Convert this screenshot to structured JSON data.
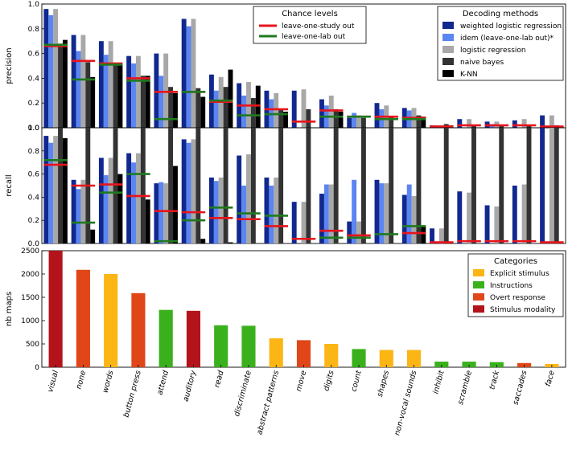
{
  "categories": [
    "visual",
    "none",
    "words",
    "button press",
    "attend",
    "auditory",
    "read",
    "discriminate",
    "abstract patterns",
    "move",
    "digits",
    "count",
    "shapes",
    "non-vocal sounds",
    "inhibit",
    "scramble",
    "track",
    "saccades",
    "face"
  ],
  "panel1": {
    "ylabel": "precision",
    "yticks": [
      "0.0",
      "0.2",
      "0.4",
      "0.6",
      "0.8",
      "1.0"
    ],
    "ylim": [
      0,
      1
    ]
  },
  "panel2": {
    "ylabel": "recall",
    "yticks": [
      "0.0",
      "0.2",
      "0.4",
      "0.6",
      "0.8",
      "1.0"
    ],
    "ylim": [
      0,
      1
    ]
  },
  "panel3": {
    "ylabel": "nb maps",
    "yticks": [
      "0",
      "500",
      "1000",
      "1500",
      "2000",
      "2500"
    ],
    "ylim": [
      0,
      2500
    ]
  },
  "chance_legend": {
    "title": "Chance levels",
    "items": [
      {
        "label": "leave-one-study out",
        "color": "#e8141b"
      },
      {
        "label": "leave-one-lab out",
        "color": "#1f7a1f"
      }
    ]
  },
  "methods_legend": {
    "title": "Decoding methods",
    "items": [
      {
        "label": "weighted logistic regression",
        "color": "#11288f"
      },
      {
        "label": "idem (leave-one-lab out)*",
        "color": "#5b85f0"
      },
      {
        "label": "logistic regression",
        "color": "#a8a8a8"
      },
      {
        "label": "naive bayes",
        "color": "#333333"
      },
      {
        "label": "K-NN",
        "color": "#000000"
      }
    ]
  },
  "categories_legend": {
    "title": "Categories",
    "items": [
      {
        "label": "Explicit stimulus",
        "color": "#fbb514"
      },
      {
        "label": "Instructions",
        "color": "#3ab11c"
      },
      {
        "label": "Overt response",
        "color": "#e04618"
      },
      {
        "label": "Stimulus modality",
        "color": "#b3141b"
      }
    ]
  },
  "chart_data": [
    {
      "type": "bar",
      "title": "",
      "ylabel": "precision",
      "ylim": [
        0,
        1
      ],
      "categories": [
        "visual",
        "none",
        "words",
        "button press",
        "attend",
        "auditory",
        "read",
        "discriminate",
        "abstract patterns",
        "move",
        "digits",
        "count",
        "shapes",
        "non-vocal sounds",
        "inhibit",
        "scramble",
        "track",
        "saccades",
        "face"
      ],
      "series": [
        {
          "name": "weighted logistic regression",
          "values": [
            0.96,
            0.75,
            0.7,
            0.58,
            0.6,
            0.88,
            0.43,
            0.36,
            0.3,
            0.3,
            0.23,
            0.08,
            0.2,
            0.16,
            0.02,
            0.07,
            0.05,
            0.06,
            0.1
          ]
        },
        {
          "name": "idem (leave-one-lab out)*",
          "values": [
            0.91,
            0.62,
            0.59,
            0.52,
            0.42,
            0.82,
            0.3,
            0.26,
            0.23,
            0.0,
            0.18,
            0.12,
            0.15,
            0.14,
            0.02,
            0.0,
            0.03,
            0.0,
            0.0
          ]
        },
        {
          "name": "logistic regression",
          "values": [
            0.96,
            0.75,
            0.7,
            0.58,
            0.6,
            0.88,
            0.41,
            0.37,
            0.28,
            0.31,
            0.26,
            0.1,
            0.18,
            0.16,
            0.02,
            0.07,
            0.05,
            0.07,
            0.1
          ]
        },
        {
          "name": "naive bayes",
          "values": [
            0.68,
            0.53,
            0.52,
            0.42,
            0.33,
            0.32,
            0.33,
            0.24,
            0.15,
            0.15,
            0.15,
            0.08,
            0.09,
            0.1,
            0.03,
            0.02,
            0.02,
            0.02,
            0.02
          ]
        },
        {
          "name": "K-NN",
          "values": [
            0.71,
            0.41,
            0.51,
            0.42,
            0.28,
            0.25,
            0.47,
            0.34,
            0.13,
            0.0,
            0.13,
            0.0,
            0.0,
            0.09,
            0.02,
            0.0,
            0.0,
            0.0,
            0.0
          ]
        }
      ],
      "chance": [
        {
          "name": "leave-one-study out",
          "values": [
            0.66,
            0.54,
            0.52,
            0.4,
            0.29,
            0.29,
            0.21,
            0.18,
            0.15,
            0.05,
            0.14,
            0.09,
            0.09,
            0.08,
            0.01,
            0.02,
            0.02,
            0.02,
            0.01
          ]
        },
        {
          "name": "leave-one-lab out",
          "values": [
            0.67,
            0.39,
            0.51,
            0.38,
            0.07,
            0.29,
            0.22,
            0.1,
            0.11,
            0.0,
            0.09,
            0.09,
            0.07,
            0.07,
            0.0,
            0.0,
            0.0,
            0.0,
            0.0
          ]
        }
      ]
    },
    {
      "type": "bar",
      "title": "",
      "ylabel": "recall",
      "ylim": [
        0,
        1
      ],
      "categories": [
        "visual",
        "none",
        "words",
        "button press",
        "attend",
        "auditory",
        "read",
        "discriminate",
        "abstract patterns",
        "move",
        "digits",
        "count",
        "shapes",
        "non-vocal sounds",
        "inhibit",
        "scramble",
        "track",
        "saccades",
        "face"
      ],
      "series": [
        {
          "name": "weighted logistic regression",
          "values": [
            0.93,
            0.55,
            0.74,
            0.78,
            0.52,
            0.9,
            0.57,
            0.76,
            0.57,
            0.36,
            0.43,
            0.19,
            0.55,
            0.42,
            0.13,
            0.45,
            0.33,
            0.5,
            1.0
          ]
        },
        {
          "name": "idem (leave-one-lab out)*",
          "values": [
            0.87,
            0.47,
            0.59,
            0.7,
            0.53,
            0.87,
            0.54,
            0.5,
            0.5,
            0.0,
            0.51,
            0.55,
            0.52,
            0.51,
            0.0,
            0.0,
            0.0,
            0.0,
            0.0
          ]
        },
        {
          "name": "logistic regression",
          "values": [
            0.93,
            0.55,
            0.74,
            0.78,
            0.52,
            0.9,
            0.57,
            0.77,
            0.57,
            0.36,
            0.51,
            0.19,
            0.52,
            0.41,
            0.13,
            0.44,
            0.32,
            0.51,
            1.0
          ]
        },
        {
          "name": "naive bayes",
          "values": [
            1.0,
            1.0,
            1.0,
            1.0,
            1.0,
            1.0,
            1.0,
            1.0,
            1.0,
            1.0,
            1.0,
            1.0,
            1.0,
            1.0,
            1.0,
            1.0,
            1.0,
            1.0,
            1.0
          ]
        },
        {
          "name": "K-NN",
          "values": [
            0.91,
            0.12,
            0.6,
            0.38,
            0.67,
            0.04,
            0.01,
            0.0,
            0.0,
            0.0,
            0.0,
            0.0,
            0.0,
            0.15,
            0.0,
            0.0,
            0.0,
            0.0,
            0.0
          ]
        }
      ],
      "chance": [
        {
          "name": "leave-one-study out",
          "values": [
            0.68,
            0.5,
            0.51,
            0.41,
            0.28,
            0.27,
            0.22,
            0.21,
            0.15,
            0.04,
            0.11,
            0.07,
            0.0,
            0.09,
            0.01,
            0.02,
            0.02,
            0.02,
            0.01
          ]
        },
        {
          "name": "leave-one-lab out",
          "values": [
            0.72,
            0.18,
            0.44,
            0.6,
            0.02,
            0.2,
            0.31,
            0.26,
            0.24,
            0.0,
            0.05,
            0.05,
            0.08,
            0.15,
            0.0,
            0.0,
            0.0,
            0.0,
            0.0
          ]
        }
      ]
    },
    {
      "type": "bar",
      "title": "",
      "ylabel": "nb maps",
      "ylim": [
        0,
        2500
      ],
      "categories": [
        "visual",
        "none",
        "words",
        "button press",
        "attend",
        "auditory",
        "read",
        "discriminate",
        "abstract patterns",
        "move",
        "digits",
        "count",
        "shapes",
        "non-vocal sounds",
        "inhibit",
        "scramble",
        "track",
        "saccades",
        "face"
      ],
      "values": [
        2500,
        2090,
        2000,
        1590,
        1230,
        1210,
        900,
        890,
        620,
        580,
        500,
        390,
        370,
        370,
        120,
        120,
        110,
        90,
        70
      ],
      "groups": [
        "Stimulus modality",
        "Overt response",
        "Explicit stimulus",
        "Overt response",
        "Instructions",
        "Stimulus modality",
        "Instructions",
        "Instructions",
        "Explicit stimulus",
        "Overt response",
        "Explicit stimulus",
        "Instructions",
        "Explicit stimulus",
        "Explicit stimulus",
        "Instructions",
        "Instructions",
        "Instructions",
        "Overt response",
        "Explicit stimulus"
      ]
    }
  ]
}
